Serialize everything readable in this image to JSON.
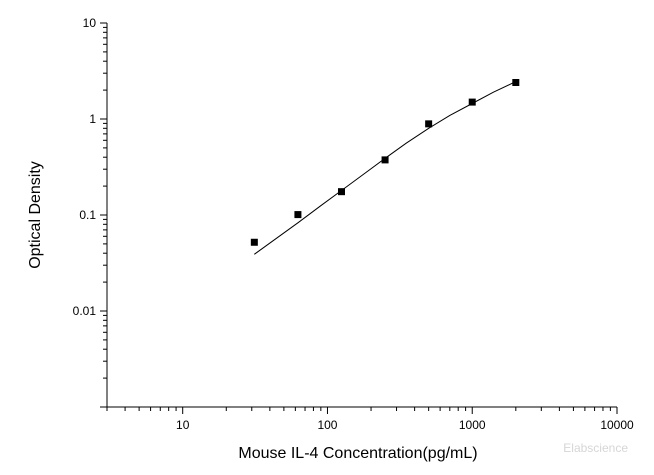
{
  "chart_data": {
    "type": "scatter",
    "title": "",
    "xlabel": "Mouse IL-4 Concentration(pg/mL)",
    "ylabel": "Optical Density",
    "x_scale": "log",
    "y_scale": "log",
    "xlim": [
      3,
      10000
    ],
    "ylim": [
      0.001,
      10
    ],
    "x_ticks": [
      {
        "value": 10,
        "label": "10"
      },
      {
        "value": 100,
        "label": "100"
      },
      {
        "value": 1000,
        "label": "1000"
      },
      {
        "value": 10000,
        "label": "10000"
      }
    ],
    "y_ticks": [
      {
        "value": 0.01,
        "label": "0.01"
      },
      {
        "value": 0.1,
        "label": "0.1"
      },
      {
        "value": 1,
        "label": "1"
      },
      {
        "value": 10,
        "label": "10"
      }
    ],
    "grid": false,
    "legend": "none",
    "series": [
      {
        "marker": "square",
        "color": "#000000",
        "x": [
          31.25,
          62.5,
          125,
          250,
          500,
          1000,
          2000
        ],
        "y": [
          0.052,
          0.101,
          0.175,
          0.375,
          0.89,
          1.5,
          2.4
        ]
      }
    ],
    "fit_curve": {
      "color": "#000000",
      "x": [
        31.25,
        45,
        62.5,
        90,
        125,
        180,
        250,
        350,
        500,
        700,
        1000,
        1400,
        2000
      ],
      "y": [
        0.039,
        0.058,
        0.083,
        0.125,
        0.18,
        0.27,
        0.39,
        0.56,
        0.8,
        1.09,
        1.45,
        1.9,
        2.45
      ]
    },
    "watermark": "Elabscience"
  }
}
